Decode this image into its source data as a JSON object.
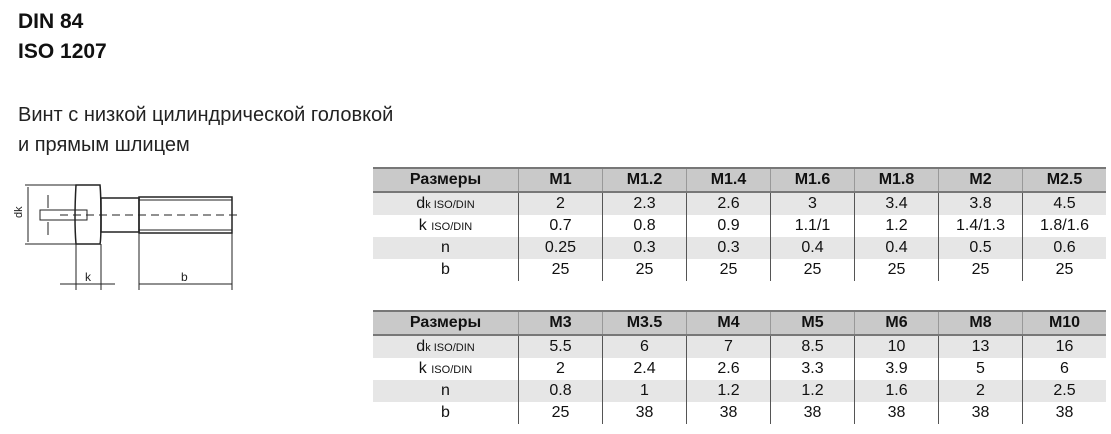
{
  "title": {
    "line1": "DIN 84",
    "line2": "ISO 1207"
  },
  "description": {
    "line1": "Винт с низкой цилиндрической головкой",
    "line2": "и прямым шлицем"
  },
  "drawing": {
    "labels": {
      "dk": "dk",
      "k": "k",
      "b": "b"
    }
  },
  "row_labels": {
    "header": "Размеры",
    "dk": "d",
    "dk_sub": "k ISO/DIN",
    "k": "k",
    "k_sub": "ISO/DIN",
    "n": "n",
    "b": "b"
  },
  "table1": {
    "sizes": [
      "M1",
      "M1.2",
      "M1.4",
      "M1.6",
      "M1.8",
      "M2",
      "M2.5"
    ],
    "dk": [
      "2",
      "2.3",
      "2.6",
      "3",
      "3.4",
      "3.8",
      "4.5"
    ],
    "k": [
      "0.7",
      "0.8",
      "0.9",
      "1.1/1",
      "1.2",
      "1.4/1.3",
      "1.8/1.6"
    ],
    "n": [
      "0.25",
      "0.3",
      "0.3",
      "0.4",
      "0.4",
      "0.5",
      "0.6"
    ],
    "b": [
      "25",
      "25",
      "25",
      "25",
      "25",
      "25",
      "25"
    ]
  },
  "table2": {
    "sizes": [
      "M3",
      "M3.5",
      "M4",
      "M5",
      "M6",
      "M8",
      "M10"
    ],
    "dk": [
      "5.5",
      "6",
      "7",
      "8.5",
      "10",
      "13",
      "16"
    ],
    "k": [
      "2",
      "2.4",
      "2.6",
      "3.3",
      "3.9",
      "5",
      "6"
    ],
    "n": [
      "0.8",
      "1",
      "1.2",
      "1.2",
      "1.6",
      "2",
      "2.5"
    ],
    "b": [
      "25",
      "38",
      "38",
      "38",
      "38",
      "38",
      "38"
    ]
  }
}
